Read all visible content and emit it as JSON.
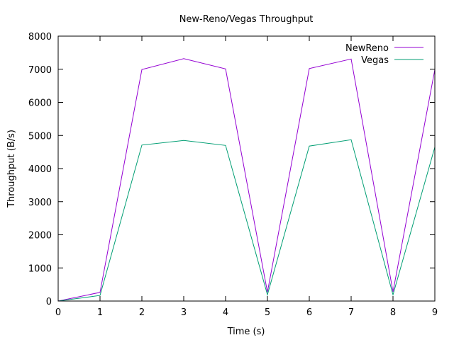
{
  "chart_data": {
    "type": "line",
    "title": "New-Reno/Vegas Throughput",
    "xlabel": "Time (s)",
    "ylabel": "Throughput (B/s)",
    "xlim": [
      0,
      9
    ],
    "ylim": [
      0,
      8000
    ],
    "xticks": [
      "0",
      "1",
      "2",
      "3",
      "4",
      "5",
      "6",
      "7",
      "8",
      "9"
    ],
    "yticks": [
      "0",
      "1000",
      "2000",
      "3000",
      "4000",
      "5000",
      "6000",
      "7000",
      "8000"
    ],
    "x": [
      0,
      1,
      2,
      3,
      4,
      5,
      6,
      7,
      8,
      9
    ],
    "grid": false,
    "legend_position": "top-right",
    "series": [
      {
        "name": "NewReno",
        "color": "#9400d3",
        "values": [
          0,
          260,
          6990,
          7320,
          7010,
          270,
          7020,
          7310,
          280,
          6990
        ]
      },
      {
        "name": "Vegas",
        "color": "#009e73",
        "values": [
          0,
          170,
          4710,
          4850,
          4700,
          190,
          4680,
          4870,
          190,
          4650
        ]
      }
    ]
  }
}
